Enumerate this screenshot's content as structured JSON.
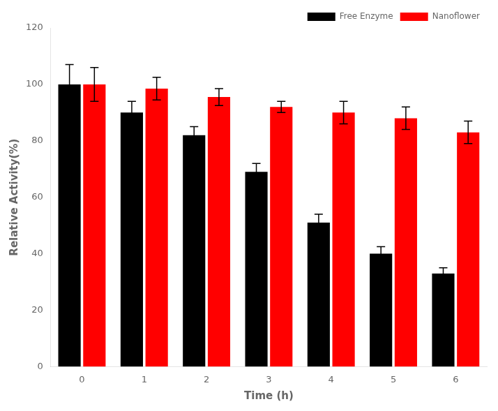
{
  "chart_data": {
    "type": "bar",
    "xlabel": "Time (h)",
    "ylabel": "Relative Activity(%)",
    "categories": [
      "0",
      "1",
      "2",
      "3",
      "4",
      "5",
      "6"
    ],
    "series": [
      {
        "name": "Free Enzyme",
        "color": "#000000",
        "values": [
          100,
          90,
          82,
          69,
          51,
          40,
          33
        ],
        "errors": [
          7,
          4,
          3,
          3,
          3,
          2.5,
          2
        ]
      },
      {
        "name": "Nanoflower",
        "color": "#ff0000",
        "values": [
          100,
          98.5,
          95.5,
          92,
          90,
          88,
          83
        ],
        "errors": [
          6,
          4,
          3,
          2,
          4,
          4,
          4
        ]
      }
    ],
    "ylim": [
      0,
      120
    ],
    "yticks": [
      0,
      20,
      40,
      60,
      80,
      100,
      120
    ],
    "grid": false,
    "legend": "upper right"
  }
}
